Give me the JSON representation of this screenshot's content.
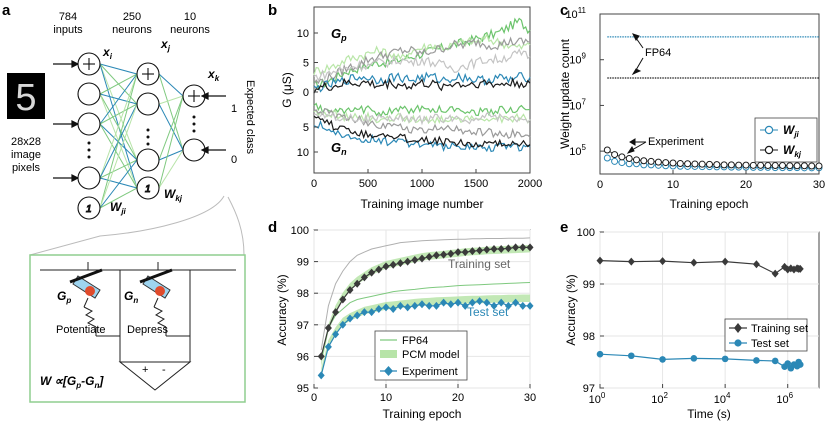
{
  "panels": {
    "a": {
      "label": "a",
      "layer_counts": [
        "784",
        "250",
        "10"
      ],
      "layer_names": [
        "inputs",
        "neurons",
        "neurons"
      ],
      "input_caption": [
        "28x28",
        "image",
        "pixels"
      ],
      "digit": "5",
      "node_labels": {
        "xi": "x",
        "xi_sub": "i",
        "xj": "x",
        "xj_sub": "j",
        "xk": "x",
        "xk_sub": "k"
      },
      "weight_labels": {
        "wji": "W",
        "wji_sub": "ji",
        "wkj": "W",
        "wkj_sub": "kj"
      },
      "bias_symbol": "1",
      "expected_class": "Expected class",
      "targets": [
        "1",
        "0"
      ],
      "circuit": {
        "gp": "G",
        "gp_sub": "p",
        "gn": "G",
        "gn_sub": "n",
        "potentiate": "Potentiate",
        "depress": "Depress",
        "formula": "W ∝[G",
        "formula_parts": [
          "W",
          "∝[G",
          "p",
          "-G",
          "n",
          "]"
        ],
        "plus": "+",
        "minus": "-"
      },
      "colors": {
        "blue": "#2b88b6",
        "green": "#7fc97f",
        "lightgreen": "#b7e4a8",
        "box": "#8fce8f"
      }
    }
  },
  "chart_data": [
    {
      "panel": "b",
      "type": "line",
      "xlabel": "Training image number",
      "ylabel": "G (μS)",
      "xlim": [
        0,
        2000
      ],
      "xticks": [
        0,
        500,
        1000,
        1500,
        2000
      ],
      "top_yticks": [
        0,
        5,
        10
      ],
      "bottom_yticks": [
        5,
        10
      ],
      "annotations": [
        "G_p",
        "G_n"
      ],
      "x": [
        0,
        100,
        200,
        300,
        400,
        500,
        600,
        700,
        800,
        900,
        1000,
        1100,
        1200,
        1300,
        1400,
        1500,
        1600,
        1700,
        1800,
        1900,
        2000
      ],
      "series": [
        {
          "color": "#6cc46c",
          "values": [
            1.0,
            1.5,
            2.5,
            3.5,
            4.0,
            4.5,
            5.0,
            5.0,
            5.5,
            6.0,
            6.5,
            7.0,
            7.5,
            8.0,
            8.5,
            9.0,
            9.5,
            10.0,
            11.0,
            12.0,
            10.5
          ]
        },
        {
          "color": "#b9e6a8",
          "values": [
            3.5,
            4.0,
            4.5,
            5.5,
            6.0,
            6.5,
            7.0,
            6.5,
            5.5,
            7.0,
            7.5,
            8.0,
            7.5,
            8.0,
            8.5,
            8.5,
            9.0,
            8.5,
            8.0,
            7.5,
            8.0
          ]
        },
        {
          "color": "#9a9a9a",
          "values": [
            1.5,
            2.0,
            3.0,
            4.0,
            4.5,
            5.5,
            6.0,
            6.5,
            7.0,
            7.0,
            6.5,
            7.0,
            7.5,
            8.0,
            8.0,
            8.5,
            8.0,
            8.0,
            8.5,
            8.5,
            8.5
          ]
        },
        {
          "color": "#c4c4c4",
          "values": [
            2.5,
            3.0,
            3.5,
            4.0,
            4.5,
            4.5,
            5.0,
            5.0,
            5.5,
            5.0,
            5.5,
            5.0,
            4.5,
            4.0,
            4.5,
            5.0,
            5.5,
            5.5,
            6.0,
            6.5,
            6.0
          ]
        },
        {
          "color": "#2b88b6",
          "values": [
            0.5,
            1.0,
            1.5,
            2.0,
            2.5,
            2.5,
            2.0,
            2.5,
            2.5,
            2.0,
            2.5,
            2.5,
            2.0,
            2.5,
            2.5,
            2.0,
            2.0,
            2.5,
            2.0,
            2.5,
            2.5
          ]
        },
        {
          "color": "#1a1a1a",
          "values": [
            0.5,
            0.8,
            1.0,
            1.5,
            1.5,
            1.5,
            1.0,
            1.5,
            1.2,
            1.0,
            1.5,
            1.2,
            1.0,
            1.5,
            1.2,
            1.5,
            1.5,
            1.2,
            1.5,
            1.5,
            1.5
          ]
        }
      ],
      "series_bottom": [
        {
          "color": "#6cc46c",
          "values": [
            1.0,
            1.5,
            2.0,
            2.0,
            1.5,
            1.5,
            2.0,
            2.0,
            1.5,
            1.5,
            1.5,
            1.5,
            1.5,
            1.5,
            1.5,
            2.0,
            2.0,
            1.5,
            1.5,
            1.5,
            1.5
          ]
        },
        {
          "color": "#b9e6a8",
          "values": [
            2.0,
            2.5,
            2.5,
            3.0,
            3.0,
            3.0,
            3.5,
            3.5,
            3.0,
            3.5,
            3.5,
            3.5,
            3.5,
            3.0,
            3.5,
            3.5,
            3.0,
            3.5,
            3.5,
            3.0,
            3.5
          ]
        },
        {
          "color": "#9a9a9a",
          "values": [
            1.5,
            2.0,
            2.5,
            3.0,
            3.5,
            4.0,
            4.5,
            4.5,
            5.0,
            5.5,
            5.5,
            5.5,
            5.0,
            5.5,
            6.0,
            6.0,
            6.0,
            6.5,
            6.5,
            6.0,
            7.0
          ]
        },
        {
          "color": "#c4c4c4",
          "values": [
            2.0,
            2.5,
            3.0,
            3.0,
            3.5,
            3.5,
            3.0,
            3.5,
            3.0,
            3.5,
            3.5,
            3.0,
            3.5,
            3.0,
            3.5,
            3.5,
            3.0,
            3.0,
            3.5,
            3.5,
            3.5
          ]
        },
        {
          "color": "#2b88b6",
          "values": [
            4.0,
            5.0,
            6.0,
            6.5,
            7.0,
            7.5,
            7.5,
            8.0,
            8.0,
            8.5,
            8.5,
            8.5,
            9.0,
            8.5,
            9.0,
            9.0,
            9.5,
            9.0,
            9.0,
            9.0,
            9.0
          ]
        },
        {
          "color": "#1a1a1a",
          "values": [
            3.5,
            4.0,
            5.0,
            5.5,
            6.0,
            6.5,
            6.5,
            7.0,
            7.0,
            7.5,
            7.5,
            7.5,
            8.0,
            8.0,
            8.0,
            8.5,
            8.5,
            8.5,
            8.0,
            8.5,
            8.5
          ]
        }
      ]
    },
    {
      "panel": "c",
      "type": "scatter",
      "xlabel": "Training epoch",
      "ylabel": "Weight update count",
      "xlim": [
        0,
        30
      ],
      "xticks": [
        0,
        10,
        20,
        30
      ],
      "yscale": "log",
      "ylim_exp": [
        4,
        11
      ],
      "yticks_exp": [
        5,
        7,
        9,
        11
      ],
      "ytick_base": "10",
      "annotations": [
        "FP64",
        "Experiment"
      ],
      "fp64_levels": [
        {
          "name": "W_ji",
          "color": "#2b88b6",
          "value_exp": 10.0
        },
        {
          "name": "W_kj",
          "color": "#1a1a1a",
          "value_exp": 8.2
        }
      ],
      "x": [
        1,
        2,
        3,
        4,
        5,
        6,
        7,
        8,
        9,
        10,
        11,
        12,
        13,
        14,
        15,
        16,
        17,
        18,
        19,
        20,
        21,
        22,
        23,
        24,
        25,
        26,
        27,
        28,
        29,
        30
      ],
      "series": [
        {
          "name": "W_ji",
          "color": "#2b88b6",
          "values_exp": [
            4.7,
            4.55,
            4.5,
            4.45,
            4.45,
            4.4,
            4.4,
            4.38,
            4.36,
            4.35,
            4.34,
            4.33,
            4.33,
            4.32,
            4.32,
            4.31,
            4.31,
            4.3,
            4.3,
            4.3,
            4.29,
            4.29,
            4.29,
            4.28,
            4.28,
            4.28,
            4.28,
            4.27,
            4.27,
            4.27
          ]
        },
        {
          "name": "W_kj",
          "color": "#1a1a1a",
          "values_exp": [
            5.05,
            4.85,
            4.75,
            4.68,
            4.62,
            4.58,
            4.55,
            4.52,
            4.5,
            4.48,
            4.46,
            4.45,
            4.44,
            4.43,
            4.42,
            4.41,
            4.4,
            4.4,
            4.39,
            4.39,
            4.38,
            4.38,
            4.37,
            4.37,
            4.37,
            4.36,
            4.36,
            4.36,
            4.35,
            4.35
          ]
        }
      ],
      "legend": [
        "W_ji",
        "W_kj"
      ]
    },
    {
      "panel": "d",
      "type": "line",
      "xlabel": "Training epoch",
      "ylabel": "Accuracy (%)",
      "xlim": [
        0,
        30
      ],
      "ylim": [
        95,
        100
      ],
      "xticks": [
        0,
        10,
        20,
        30
      ],
      "yticks": [
        95,
        96,
        97,
        98,
        99,
        100
      ],
      "annotations": [
        "Training set",
        "Test set"
      ],
      "legend": [
        "FP64",
        "PCM model",
        "Experiment"
      ],
      "x": [
        1,
        2,
        3,
        4,
        5,
        6,
        7,
        8,
        9,
        10,
        11,
        12,
        13,
        14,
        15,
        16,
        17,
        18,
        19,
        20,
        21,
        22,
        23,
        24,
        25,
        26,
        27,
        28,
        29,
        30
      ],
      "series": [
        {
          "name": "FP64",
          "set": "train",
          "values": [
            96.2,
            97.6,
            98.3,
            98.7,
            99.0,
            99.2,
            99.3,
            99.4,
            99.45,
            99.5,
            99.55,
            99.6,
            99.62,
            99.64,
            99.66,
            99.67,
            99.68,
            99.69,
            99.7,
            99.71,
            99.71,
            99.72,
            99.72,
            99.73,
            99.73,
            99.73,
            99.74,
            99.74,
            99.74,
            99.75
          ]
        },
        {
          "name": "FP64",
          "set": "test",
          "values": [
            95.9,
            96.9,
            97.3,
            97.5,
            97.7,
            97.8,
            97.85,
            97.9,
            97.95,
            98.0,
            98.05,
            98.08,
            98.1,
            98.12,
            98.15,
            98.17,
            98.19,
            98.2,
            98.22,
            98.24,
            98.25,
            98.26,
            98.27,
            98.28,
            98.29,
            98.3,
            98.31,
            98.32,
            98.33,
            98.34
          ]
        },
        {
          "name": "PCM model",
          "set": "train",
          "values": [
            95.8,
            96.9,
            97.5,
            97.9,
            98.2,
            98.4,
            98.55,
            98.7,
            98.8,
            98.9,
            98.95,
            99.0,
            99.05,
            99.1,
            99.15,
            99.18,
            99.2,
            99.22,
            99.25,
            99.27,
            99.3,
            99.32,
            99.33,
            99.35,
            99.36,
            99.37,
            99.38,
            99.39,
            99.4,
            99.41
          ]
        },
        {
          "name": "PCM model",
          "set": "test",
          "values": [
            95.5,
            96.4,
            96.8,
            97.1,
            97.25,
            97.35,
            97.45,
            97.5,
            97.55,
            97.6,
            97.62,
            97.65,
            97.67,
            97.7,
            97.72,
            97.73,
            97.75,
            97.76,
            97.77,
            97.78,
            97.79,
            97.8,
            97.8,
            97.81,
            97.82,
            97.82,
            97.83,
            97.83,
            97.84,
            97.84
          ]
        },
        {
          "name": "Experiment",
          "set": "train",
          "values": [
            96.0,
            96.9,
            97.4,
            97.8,
            98.1,
            98.3,
            98.5,
            98.65,
            98.75,
            98.85,
            98.9,
            98.95,
            99.0,
            99.05,
            99.1,
            99.15,
            99.2,
            99.22,
            99.25,
            99.3,
            99.3,
            99.33,
            99.35,
            99.38,
            99.4,
            99.4,
            99.42,
            99.45,
            99.45,
            99.45
          ]
        },
        {
          "name": "Experiment",
          "set": "test",
          "values": [
            95.4,
            96.3,
            96.7,
            97.0,
            97.2,
            97.3,
            97.4,
            97.4,
            97.5,
            97.55,
            97.5,
            97.6,
            97.55,
            97.6,
            97.65,
            97.6,
            97.6,
            97.7,
            97.65,
            97.7,
            97.6,
            97.7,
            97.75,
            97.7,
            97.6,
            97.7,
            97.6,
            97.7,
            97.6,
            97.6
          ]
        }
      ],
      "colors": {
        "fp64": "#7fc97f",
        "fp64_train": "#b0b0b0",
        "pcm_band": "#b7e4a8",
        "exp_train": "#3a3a3a",
        "exp_test": "#2b88b6"
      }
    },
    {
      "panel": "e",
      "type": "line",
      "xlabel": "Time (s)",
      "ylabel": "Accuracy (%)",
      "xscale": "log",
      "xlim_exp": [
        0,
        7
      ],
      "xticks_exp": [
        0,
        2,
        4,
        6
      ],
      "xtick_base": "10",
      "ylim": [
        97,
        100
      ],
      "yticks": [
        97,
        98,
        99,
        100
      ],
      "legend": [
        "Training set",
        "Test set"
      ],
      "x_exp": [
        0,
        1,
        2,
        3,
        4,
        5,
        5.6,
        5.9,
        6.0,
        6.1,
        6.2,
        6.3,
        6.35,
        6.4
      ],
      "series": [
        {
          "name": "Training set",
          "color": "#3a3a3a",
          "marker": "diamond",
          "values": [
            99.45,
            99.43,
            99.44,
            99.41,
            99.43,
            99.38,
            99.2,
            99.33,
            99.28,
            99.3,
            99.28,
            99.3,
            99.29,
            99.29
          ]
        },
        {
          "name": "Test set",
          "color": "#2b88b6",
          "marker": "circle",
          "values": [
            97.65,
            97.62,
            97.55,
            97.57,
            97.56,
            97.53,
            97.52,
            97.41,
            97.47,
            97.38,
            97.45,
            97.42,
            97.5,
            97.45
          ]
        }
      ]
    }
  ]
}
